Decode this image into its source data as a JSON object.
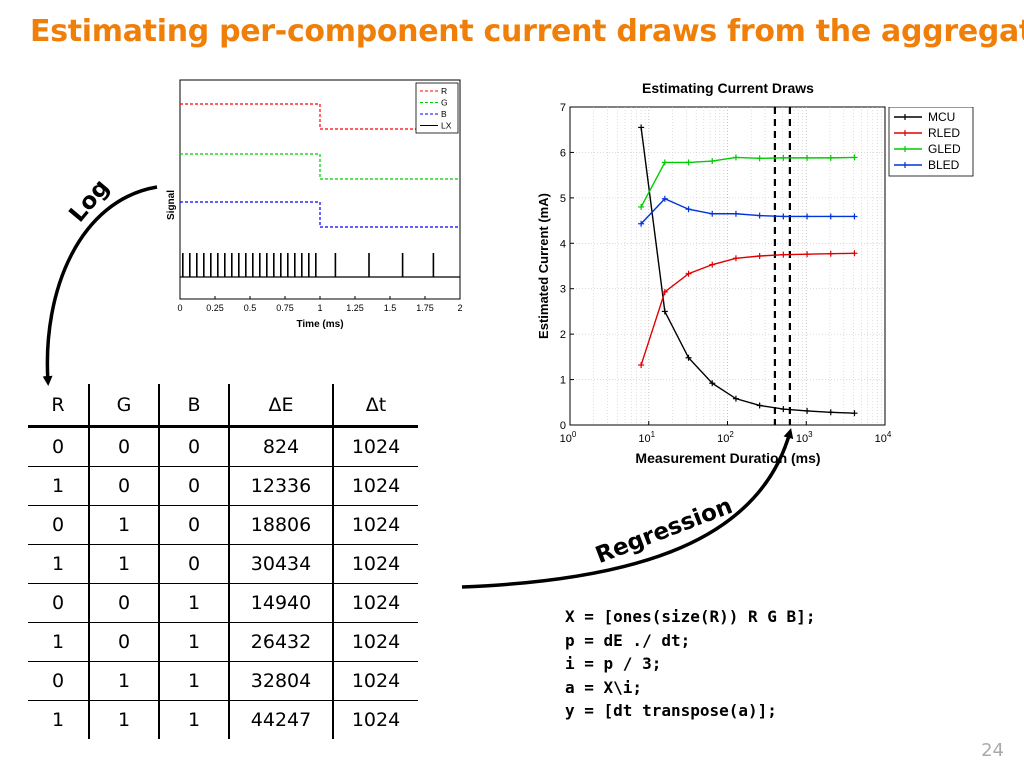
{
  "slide": {
    "title": "Estimating per-component current draws from the aggregate",
    "page_number": "24",
    "arrow_labels": {
      "log": "Log",
      "regression": "Regression"
    }
  },
  "colors": {
    "title": "#f07f09",
    "R": "#ff0000",
    "G": "#00cc00",
    "B": "#0000ff",
    "LX": "#000000",
    "MCU": "#000000"
  },
  "table": {
    "headers": [
      "R",
      "G",
      "B",
      "ΔE",
      "Δt"
    ],
    "rows": [
      [
        "0",
        "0",
        "0",
        "824",
        "1024"
      ],
      [
        "1",
        "0",
        "0",
        "12336",
        "1024"
      ],
      [
        "0",
        "1",
        "0",
        "18806",
        "1024"
      ],
      [
        "1",
        "1",
        "0",
        "30434",
        "1024"
      ],
      [
        "0",
        "0",
        "1",
        "14940",
        "1024"
      ],
      [
        "1",
        "0",
        "1",
        "26432",
        "1024"
      ],
      [
        "0",
        "1",
        "1",
        "32804",
        "1024"
      ],
      [
        "1",
        "1",
        "1",
        "44247",
        "1024"
      ]
    ]
  },
  "code": {
    "lines": [
      "X = [ones(size(R)) R G B];",
      "p = dE ./ dt;",
      "i = p / 3;",
      "a = X\\i;",
      "y = [dt transpose(a)];"
    ]
  },
  "chart_data": [
    {
      "type": "line",
      "title": "",
      "xlabel": "Time (ms)",
      "ylabel": "Signal",
      "xlim": [
        0,
        2
      ],
      "xticks": [
        "0",
        "0.25",
        "0.5",
        "0.75",
        "1",
        "1.25",
        "1.5",
        "1.75",
        "2"
      ],
      "legend": {
        "position": "top-right",
        "entries": [
          "R",
          "G",
          "B",
          "LX"
        ]
      },
      "series": [
        {
          "name": "R",
          "style": "dashed",
          "color": "#ff0000",
          "x": [
            0,
            1,
            1,
            2
          ],
          "y": [
            1,
            1,
            0,
            0
          ]
        },
        {
          "name": "G",
          "style": "dashed",
          "color": "#00cc00",
          "x": [
            0,
            1,
            1,
            2
          ],
          "y": [
            1,
            1,
            0,
            0
          ]
        },
        {
          "name": "B",
          "style": "dashed",
          "color": "#0000ff",
          "x": [
            0,
            1,
            1,
            2
          ],
          "y": [
            1,
            1,
            0,
            0
          ]
        },
        {
          "name": "LX",
          "style": "pulses",
          "color": "#000000",
          "pulse_times": [
            0.02,
            0.07,
            0.12,
            0.17,
            0.22,
            0.27,
            0.32,
            0.37,
            0.42,
            0.47,
            0.52,
            0.57,
            0.62,
            0.67,
            0.72,
            0.77,
            0.82,
            0.87,
            0.92,
            0.97,
            1.11,
            1.35,
            1.59,
            1.81
          ]
        }
      ]
    },
    {
      "type": "line",
      "title": "Estimating Current Draws",
      "xlabel": "Measurement Duration (ms)",
      "ylabel": "Estimated Current (mA)",
      "xscale": "log",
      "xlim": [
        1,
        10000
      ],
      "ylim": [
        0,
        7
      ],
      "yticks": [
        0,
        1,
        2,
        3,
        4,
        5,
        6,
        7
      ],
      "xtick_exponents": [
        "0",
        "1",
        "2",
        "3",
        "4"
      ],
      "grid": true,
      "legend": {
        "position": "top-right",
        "entries": [
          "MCU",
          "RLED",
          "GLED",
          "BLED"
        ]
      },
      "x": [
        8,
        16,
        32,
        64,
        128,
        256,
        512,
        1024,
        2048,
        4096
      ],
      "series": [
        {
          "name": "MCU",
          "color": "#000000",
          "values": [
            6.55,
            2.5,
            1.48,
            0.92,
            0.58,
            0.43,
            0.35,
            0.31,
            0.28,
            0.26
          ]
        },
        {
          "name": "RLED",
          "color": "#e00000",
          "values": [
            1.32,
            2.93,
            3.33,
            3.53,
            3.67,
            3.72,
            3.75,
            3.76,
            3.77,
            3.78
          ]
        },
        {
          "name": "GLED",
          "color": "#00cc00",
          "values": [
            4.8,
            5.78,
            5.78,
            5.81,
            5.89,
            5.87,
            5.88,
            5.88,
            5.88,
            5.89
          ]
        },
        {
          "name": "BLED",
          "color": "#0033dd",
          "values": [
            4.43,
            4.98,
            4.75,
            4.65,
            4.65,
            4.61,
            4.59,
            4.59,
            4.59,
            4.59
          ]
        }
      ],
      "annotations": [
        {
          "type": "dashed-vertical-lines",
          "x": [
            400,
            620
          ]
        }
      ]
    }
  ]
}
